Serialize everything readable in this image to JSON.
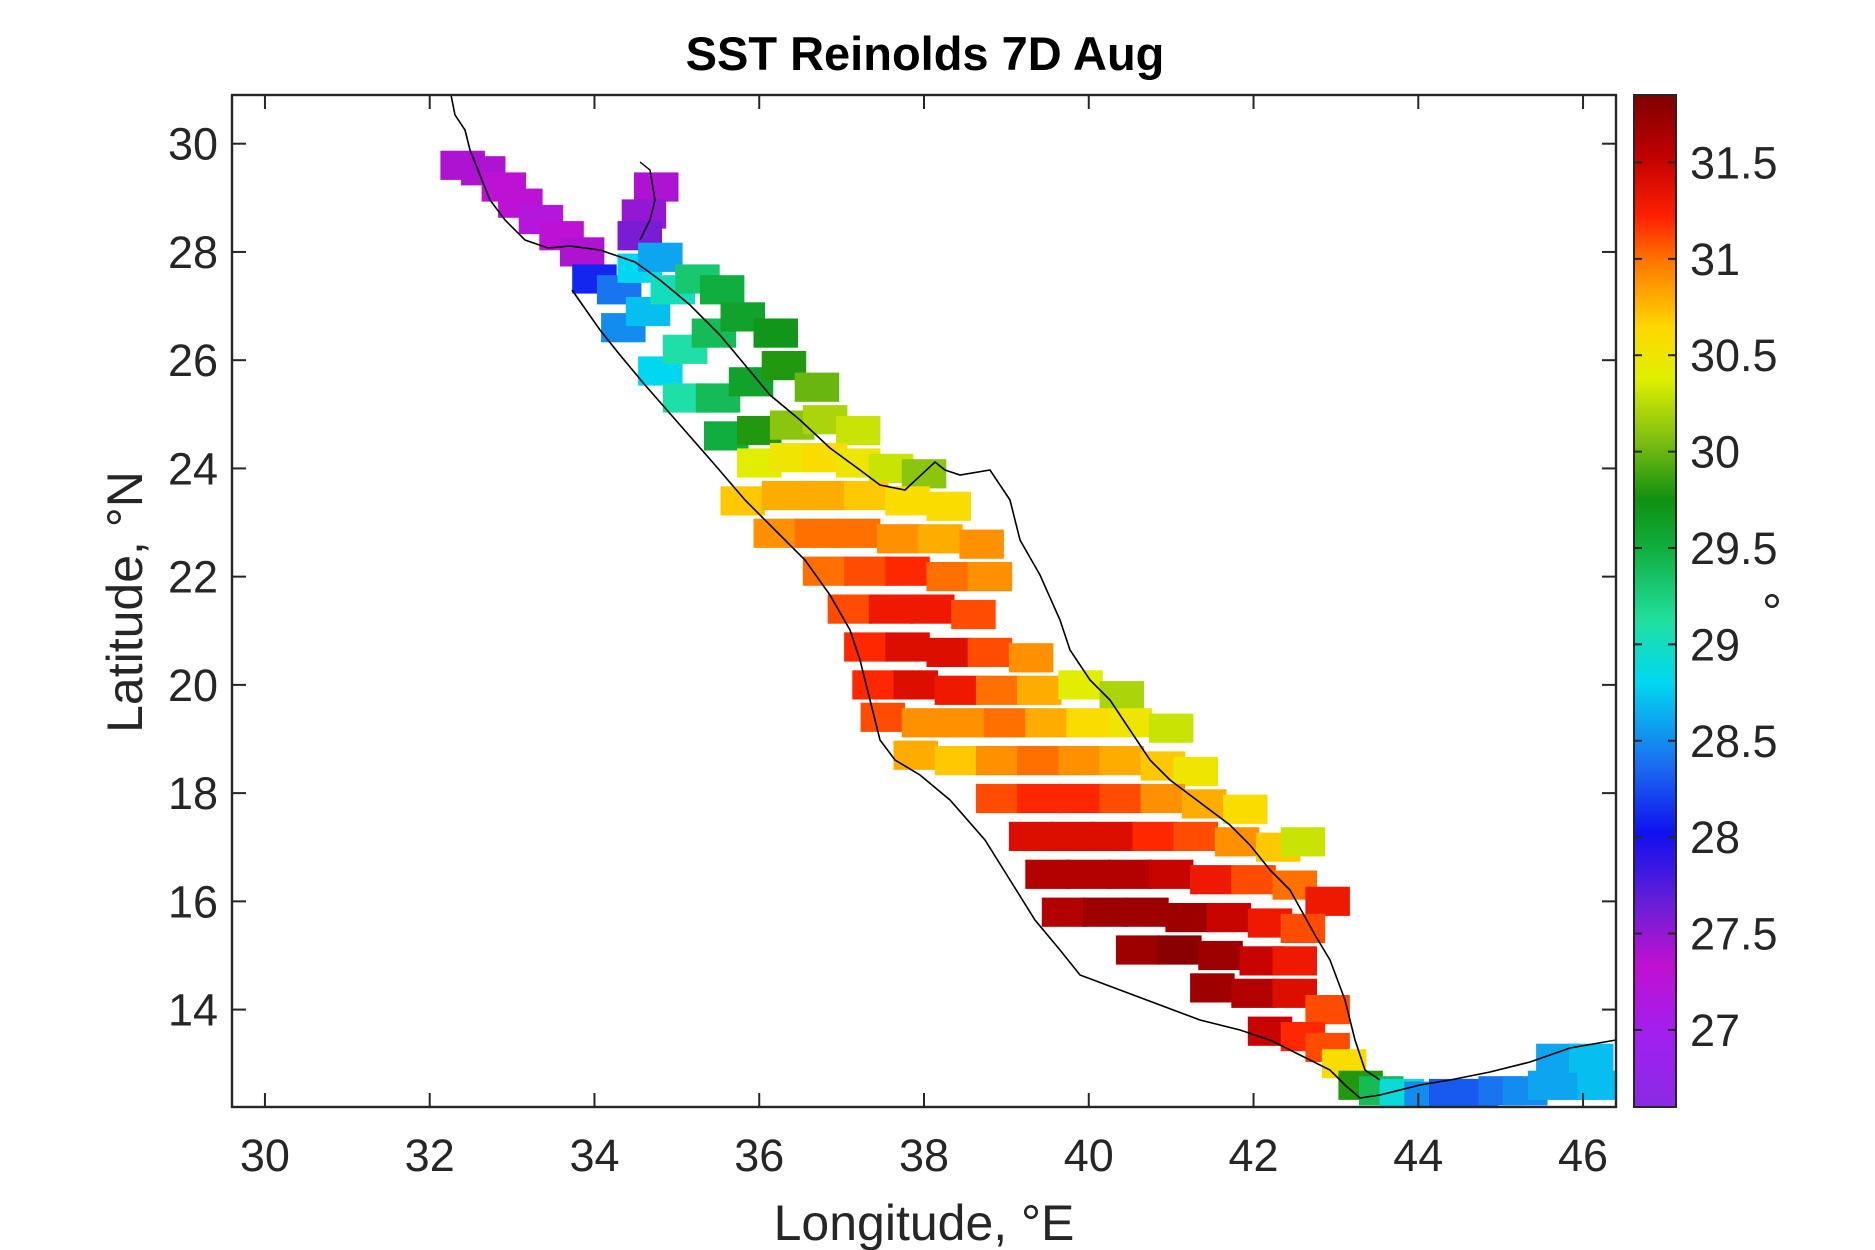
{
  "chart_data": {
    "type": "heatmap",
    "title": "SST Reinolds 7D Aug",
    "xlabel": "Longitude, °E",
    "ylabel": "Latitude, °N",
    "xlim": [
      29.6,
      46.4
    ],
    "ylim": [
      12.2,
      30.9
    ],
    "xticks": [
      30,
      32,
      34,
      36,
      38,
      40,
      42,
      44,
      46
    ],
    "xtick_labels": [
      "30",
      "32",
      "34",
      "36",
      "38",
      "40",
      "42",
      "44",
      "46"
    ],
    "yticks": [
      14,
      16,
      18,
      20,
      22,
      24,
      26,
      28,
      30
    ],
    "ytick_labels": [
      "14",
      "16",
      "18",
      "20",
      "22",
      "24",
      "26",
      "28",
      "30"
    ],
    "colorbar": {
      "label": "°",
      "range": [
        26.6,
        31.85
      ],
      "ticks": [
        27,
        27.5,
        28,
        28.5,
        29,
        29.5,
        30,
        30.5,
        31,
        31.5
      ],
      "tick_labels": [
        "27",
        "27.5",
        "28",
        "28.5",
        "29",
        "29.5",
        "30",
        "30.5",
        "31",
        "31.5"
      ],
      "colormap": "spectral-jet"
    },
    "grid": false,
    "grid_resolution_deg": 0.25,
    "sst_field": {
      "description_units": "degrees",
      "cells": [
        {
          "lon": 32.4,
          "lat": 29.6,
          "v": 27.4
        },
        {
          "lon": 32.65,
          "lat": 29.5,
          "v": 27.4
        },
        {
          "lon": 32.9,
          "lat": 29.2,
          "v": 27.3
        },
        {
          "lon": 33.1,
          "lat": 28.9,
          "v": 27.3
        },
        {
          "lon": 33.35,
          "lat": 28.6,
          "v": 27.2
        },
        {
          "lon": 33.6,
          "lat": 28.3,
          "v": 27.3
        },
        {
          "lon": 33.85,
          "lat": 28.0,
          "v": 27.4
        },
        {
          "lon": 34.75,
          "lat": 29.2,
          "v": 27.4
        },
        {
          "lon": 34.6,
          "lat": 28.7,
          "v": 27.5
        },
        {
          "lon": 34.55,
          "lat": 28.3,
          "v": 27.6
        },
        {
          "lon": 34.0,
          "lat": 27.5,
          "v": 28.1
        },
        {
          "lon": 34.3,
          "lat": 27.3,
          "v": 28.4
        },
        {
          "lon": 34.55,
          "lat": 27.7,
          "v": 28.8
        },
        {
          "lon": 34.8,
          "lat": 27.9,
          "v": 28.6
        },
        {
          "lon": 34.35,
          "lat": 26.6,
          "v": 28.5
        },
        {
          "lon": 34.65,
          "lat": 26.9,
          "v": 28.7
        },
        {
          "lon": 34.95,
          "lat": 27.3,
          "v": 29.0
        },
        {
          "lon": 35.25,
          "lat": 27.5,
          "v": 29.3
        },
        {
          "lon": 35.55,
          "lat": 27.3,
          "v": 29.5
        },
        {
          "lon": 34.8,
          "lat": 25.8,
          "v": 28.8
        },
        {
          "lon": 35.1,
          "lat": 26.2,
          "v": 29.1
        },
        {
          "lon": 35.45,
          "lat": 26.5,
          "v": 29.4
        },
        {
          "lon": 35.8,
          "lat": 26.8,
          "v": 29.6
        },
        {
          "lon": 36.2,
          "lat": 26.5,
          "v": 29.7
        },
        {
          "lon": 35.1,
          "lat": 25.3,
          "v": 29.1
        },
        {
          "lon": 35.5,
          "lat": 25.3,
          "v": 29.4
        },
        {
          "lon": 35.9,
          "lat": 25.6,
          "v": 29.6
        },
        {
          "lon": 36.3,
          "lat": 25.9,
          "v": 29.8
        },
        {
          "lon": 36.7,
          "lat": 25.5,
          "v": 30.0
        },
        {
          "lon": 35.6,
          "lat": 24.6,
          "v": 29.5
        },
        {
          "lon": 36.0,
          "lat": 24.7,
          "v": 29.8
        },
        {
          "lon": 36.4,
          "lat": 24.8,
          "v": 30.1
        },
        {
          "lon": 36.8,
          "lat": 24.9,
          "v": 30.2
        },
        {
          "lon": 37.2,
          "lat": 24.7,
          "v": 30.3
        },
        {
          "lon": 36.0,
          "lat": 24.1,
          "v": 30.4
        },
        {
          "lon": 36.4,
          "lat": 24.2,
          "v": 30.5
        },
        {
          "lon": 36.8,
          "lat": 24.2,
          "v": 30.6
        },
        {
          "lon": 37.2,
          "lat": 24.1,
          "v": 30.5
        },
        {
          "lon": 37.6,
          "lat": 24.0,
          "v": 30.3
        },
        {
          "lon": 38.0,
          "lat": 23.9,
          "v": 30.1
        },
        {
          "lon": 35.8,
          "lat": 23.4,
          "v": 30.7
        },
        {
          "lon": 36.3,
          "lat": 23.5,
          "v": 30.8
        },
        {
          "lon": 36.8,
          "lat": 23.5,
          "v": 30.8
        },
        {
          "lon": 37.3,
          "lat": 23.5,
          "v": 30.7
        },
        {
          "lon": 37.8,
          "lat": 23.4,
          "v": 30.6
        },
        {
          "lon": 38.3,
          "lat": 23.3,
          "v": 30.6
        },
        {
          "lon": 36.2,
          "lat": 22.8,
          "v": 30.9
        },
        {
          "lon": 36.7,
          "lat": 22.8,
          "v": 31.0
        },
        {
          "lon": 37.2,
          "lat": 22.8,
          "v": 31.0
        },
        {
          "lon": 37.7,
          "lat": 22.7,
          "v": 30.9
        },
        {
          "lon": 38.2,
          "lat": 22.7,
          "v": 30.8
        },
        {
          "lon": 38.7,
          "lat": 22.6,
          "v": 30.9
        },
        {
          "lon": 36.8,
          "lat": 22.1,
          "v": 31.0
        },
        {
          "lon": 37.3,
          "lat": 22.1,
          "v": 31.1
        },
        {
          "lon": 37.8,
          "lat": 22.1,
          "v": 31.2
        },
        {
          "lon": 38.3,
          "lat": 22.0,
          "v": 31.0
        },
        {
          "lon": 38.8,
          "lat": 22.0,
          "v": 30.9
        },
        {
          "lon": 37.1,
          "lat": 21.4,
          "v": 31.1
        },
        {
          "lon": 37.6,
          "lat": 21.4,
          "v": 31.3
        },
        {
          "lon": 38.1,
          "lat": 21.4,
          "v": 31.3
        },
        {
          "lon": 38.6,
          "lat": 21.3,
          "v": 31.1
        },
        {
          "lon": 37.3,
          "lat": 20.7,
          "v": 31.2
        },
        {
          "lon": 37.8,
          "lat": 20.7,
          "v": 31.4
        },
        {
          "lon": 38.3,
          "lat": 20.6,
          "v": 31.4
        },
        {
          "lon": 38.8,
          "lat": 20.6,
          "v": 31.1
        },
        {
          "lon": 39.3,
          "lat": 20.5,
          "v": 30.9
        },
        {
          "lon": 37.4,
          "lat": 20.0,
          "v": 31.2
        },
        {
          "lon": 37.9,
          "lat": 20.0,
          "v": 31.4
        },
        {
          "lon": 38.4,
          "lat": 19.9,
          "v": 31.3
        },
        {
          "lon": 38.9,
          "lat": 19.9,
          "v": 31.0
        },
        {
          "lon": 39.4,
          "lat": 19.9,
          "v": 30.8
        },
        {
          "lon": 39.9,
          "lat": 20.0,
          "v": 30.4
        },
        {
          "lon": 40.4,
          "lat": 19.8,
          "v": 30.2
        },
        {
          "lon": 37.5,
          "lat": 19.4,
          "v": 31.1
        },
        {
          "lon": 38.0,
          "lat": 19.3,
          "v": 30.9
        },
        {
          "lon": 38.5,
          "lat": 19.3,
          "v": 30.9
        },
        {
          "lon": 39.0,
          "lat": 19.3,
          "v": 31.0
        },
        {
          "lon": 39.5,
          "lat": 19.3,
          "v": 30.8
        },
        {
          "lon": 40.0,
          "lat": 19.3,
          "v": 30.6
        },
        {
          "lon": 40.5,
          "lat": 19.3,
          "v": 30.5
        },
        {
          "lon": 41.0,
          "lat": 19.2,
          "v": 30.3
        },
        {
          "lon": 37.9,
          "lat": 18.7,
          "v": 30.8
        },
        {
          "lon": 38.4,
          "lat": 18.6,
          "v": 30.7
        },
        {
          "lon": 38.9,
          "lat": 18.6,
          "v": 30.9
        },
        {
          "lon": 39.4,
          "lat": 18.6,
          "v": 31.0
        },
        {
          "lon": 39.9,
          "lat": 18.6,
          "v": 30.9
        },
        {
          "lon": 40.4,
          "lat": 18.6,
          "v": 30.8
        },
        {
          "lon": 40.9,
          "lat": 18.5,
          "v": 30.7
        },
        {
          "lon": 41.3,
          "lat": 18.4,
          "v": 30.5
        },
        {
          "lon": 38.9,
          "lat": 17.9,
          "v": 31.1
        },
        {
          "lon": 39.4,
          "lat": 17.9,
          "v": 31.2
        },
        {
          "lon": 39.9,
          "lat": 17.9,
          "v": 31.2
        },
        {
          "lon": 40.4,
          "lat": 17.9,
          "v": 31.1
        },
        {
          "lon": 40.9,
          "lat": 17.9,
          "v": 30.9
        },
        {
          "lon": 41.4,
          "lat": 17.8,
          "v": 30.8
        },
        {
          "lon": 41.9,
          "lat": 17.7,
          "v": 30.6
        },
        {
          "lon": 39.3,
          "lat": 17.2,
          "v": 31.4
        },
        {
          "lon": 39.8,
          "lat": 17.2,
          "v": 31.4
        },
        {
          "lon": 40.3,
          "lat": 17.2,
          "v": 31.4
        },
        {
          "lon": 40.8,
          "lat": 17.2,
          "v": 31.2
        },
        {
          "lon": 41.3,
          "lat": 17.2,
          "v": 31.1
        },
        {
          "lon": 41.8,
          "lat": 17.1,
          "v": 30.9
        },
        {
          "lon": 42.3,
          "lat": 17.0,
          "v": 30.7
        },
        {
          "lon": 42.6,
          "lat": 17.1,
          "v": 30.3
        },
        {
          "lon": 39.5,
          "lat": 16.5,
          "v": 31.6
        },
        {
          "lon": 40.0,
          "lat": 16.5,
          "v": 31.6
        },
        {
          "lon": 40.5,
          "lat": 16.5,
          "v": 31.6
        },
        {
          "lon": 41.0,
          "lat": 16.5,
          "v": 31.5
        },
        {
          "lon": 41.5,
          "lat": 16.4,
          "v": 31.3
        },
        {
          "lon": 42.0,
          "lat": 16.4,
          "v": 31.1
        },
        {
          "lon": 42.5,
          "lat": 16.3,
          "v": 31.0
        },
        {
          "lon": 42.9,
          "lat": 16.0,
          "v": 31.3
        },
        {
          "lon": 39.7,
          "lat": 15.8,
          "v": 31.6
        },
        {
          "lon": 40.2,
          "lat": 15.8,
          "v": 31.7
        },
        {
          "lon": 40.7,
          "lat": 15.8,
          "v": 31.7
        },
        {
          "lon": 41.2,
          "lat": 15.7,
          "v": 31.7
        },
        {
          "lon": 41.7,
          "lat": 15.7,
          "v": 31.5
        },
        {
          "lon": 42.2,
          "lat": 15.6,
          "v": 31.3
        },
        {
          "lon": 42.6,
          "lat": 15.5,
          "v": 31.1
        },
        {
          "lon": 40.6,
          "lat": 15.1,
          "v": 31.7
        },
        {
          "lon": 41.1,
          "lat": 15.1,
          "v": 31.8
        },
        {
          "lon": 41.6,
          "lat": 15.0,
          "v": 31.7
        },
        {
          "lon": 42.1,
          "lat": 14.9,
          "v": 31.5
        },
        {
          "lon": 42.5,
          "lat": 14.9,
          "v": 31.3
        },
        {
          "lon": 41.5,
          "lat": 14.4,
          "v": 31.7
        },
        {
          "lon": 42.0,
          "lat": 14.3,
          "v": 31.6
        },
        {
          "lon": 42.5,
          "lat": 14.3,
          "v": 31.4
        },
        {
          "lon": 42.9,
          "lat": 14.0,
          "v": 31.1
        },
        {
          "lon": 42.2,
          "lat": 13.6,
          "v": 31.5
        },
        {
          "lon": 42.6,
          "lat": 13.5,
          "v": 31.2
        },
        {
          "lon": 42.9,
          "lat": 13.3,
          "v": 31.1
        },
        {
          "lon": 43.1,
          "lat": 13.0,
          "v": 30.6
        },
        {
          "lon": 43.3,
          "lat": 12.6,
          "v": 29.8
        },
        {
          "lon": 43.55,
          "lat": 12.5,
          "v": 29.4
        },
        {
          "lon": 43.8,
          "lat": 12.45,
          "v": 28.9
        },
        {
          "lon": 44.1,
          "lat": 12.4,
          "v": 28.5
        },
        {
          "lon": 44.4,
          "lat": 12.45,
          "v": 28.3
        },
        {
          "lon": 44.7,
          "lat": 12.45,
          "v": 28.3
        },
        {
          "lon": 45.0,
          "lat": 12.5,
          "v": 28.4
        },
        {
          "lon": 45.3,
          "lat": 12.5,
          "v": 28.5
        },
        {
          "lon": 45.6,
          "lat": 12.6,
          "v": 28.6
        },
        {
          "lon": 45.9,
          "lat": 12.6,
          "v": 28.6
        },
        {
          "lon": 46.2,
          "lat": 12.6,
          "v": 28.7
        },
        {
          "lon": 45.7,
          "lat": 13.1,
          "v": 28.6
        },
        {
          "lon": 46.1,
          "lat": 13.1,
          "v": 28.7
        }
      ]
    },
    "coastline_color": "#000000"
  }
}
